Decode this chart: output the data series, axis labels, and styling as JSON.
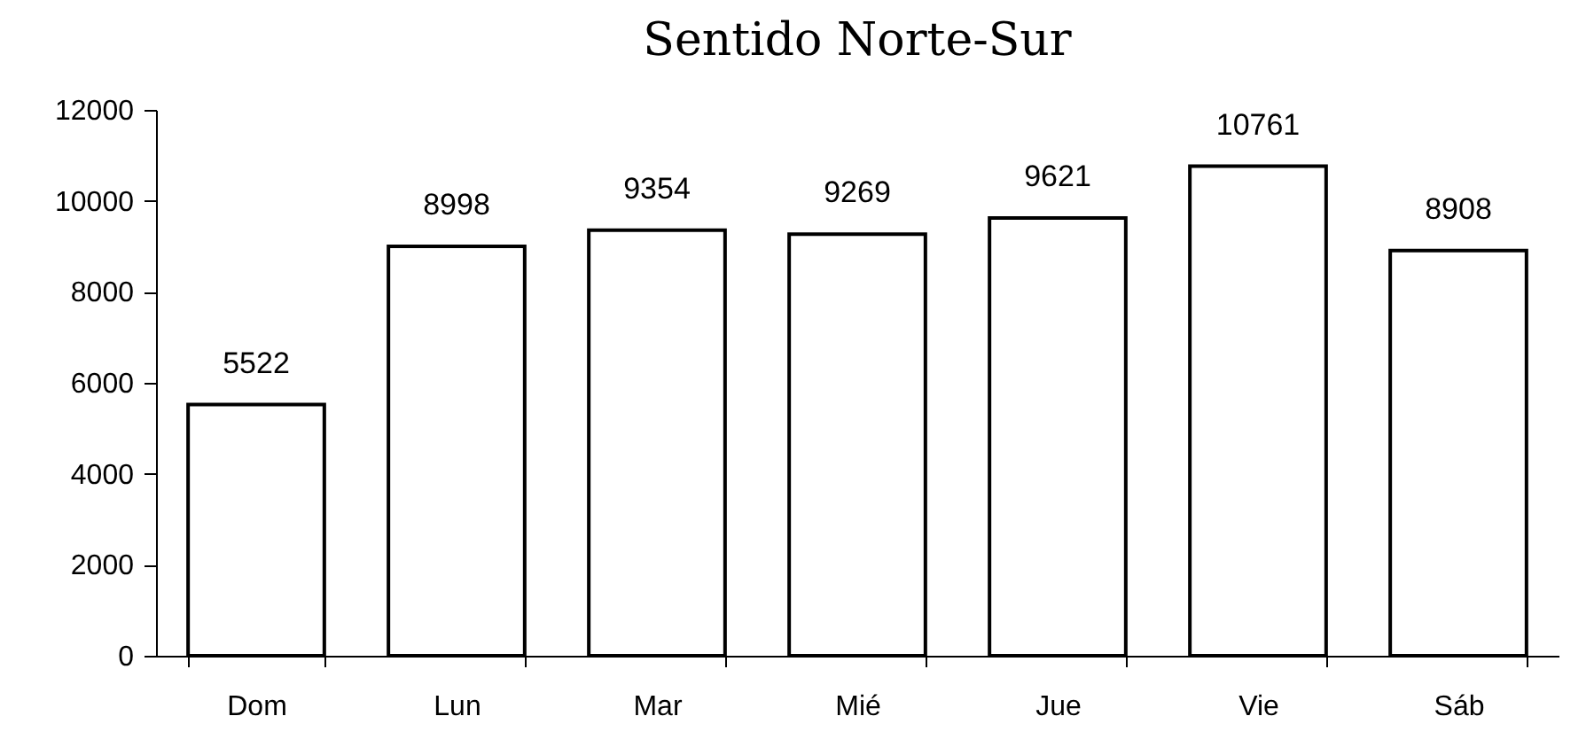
{
  "chart_data": {
    "type": "bar",
    "title": "Sentido Norte-Sur",
    "categories": [
      "Dom",
      "Lun",
      "Mar",
      "Mié",
      "Jue",
      "Vie",
      "Sáb"
    ],
    "values": [
      5522,
      8998,
      9354,
      9269,
      9621,
      10761,
      8908
    ],
    "color": "#ffffff",
    "ylim": [
      0,
      12000
    ],
    "yticks": [
      0,
      2000,
      4000,
      6000,
      8000,
      10000,
      12000
    ],
    "grid": false,
    "data_labels": true
  }
}
